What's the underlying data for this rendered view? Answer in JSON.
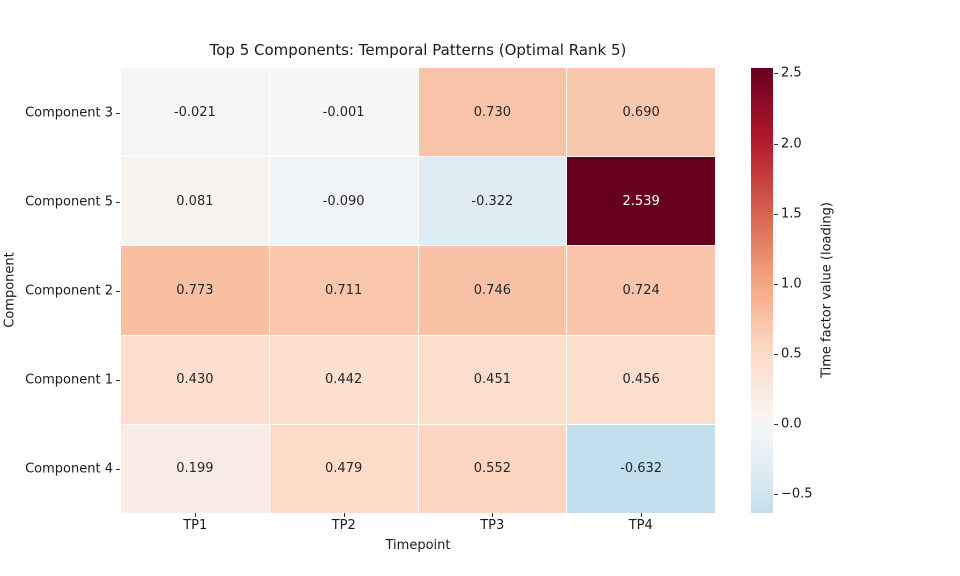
{
  "chart_data": {
    "type": "heatmap",
    "title": "Top 5 Components: Temporal Patterns (Optimal Rank 5)",
    "xlabel": "Timepoint",
    "ylabel": "Component",
    "x_tick_labels": [
      "TP1",
      "TP2",
      "TP3",
      "TP4"
    ],
    "y_tick_labels": [
      "Component 3",
      "Component 5",
      "Component 2",
      "Component 1",
      "Component 4"
    ],
    "values": [
      [
        -0.021,
        -0.001,
        0.73,
        0.69
      ],
      [
        0.081,
        -0.09,
        -0.322,
        2.539
      ],
      [
        0.773,
        0.711,
        0.746,
        0.724
      ],
      [
        0.43,
        0.442,
        0.451,
        0.456
      ],
      [
        0.199,
        0.479,
        0.552,
        -0.632
      ]
    ],
    "cell_value_decimals": 3,
    "vmin": -0.632,
    "vmax": 2.539,
    "center": 0,
    "colormap": "RdBu_r",
    "colormap_anchors": [
      "#053061",
      "#2166ac",
      "#4393c3",
      "#92c5de",
      "#d1e5f0",
      "#f7f7f7",
      "#fddbc7",
      "#f4a582",
      "#d6604d",
      "#b2182b",
      "#67001f"
    ],
    "grid_line_color": "#ffffff",
    "annotation_text_dark": "#262626",
    "annotation_text_light": "#ffffff",
    "background": "#ffffff",
    "grid": false,
    "legend_position": "none",
    "colorbar": {
      "label": "Time factor value (loading)",
      "ticks": [
        2.5,
        2.0,
        1.5,
        1.0,
        0.5,
        0.0,
        -0.5
      ],
      "tick_labels": [
        "2.5",
        "2.0",
        "1.5",
        "1.0",
        "0.5",
        "0.0",
        "−0.5"
      ]
    }
  }
}
